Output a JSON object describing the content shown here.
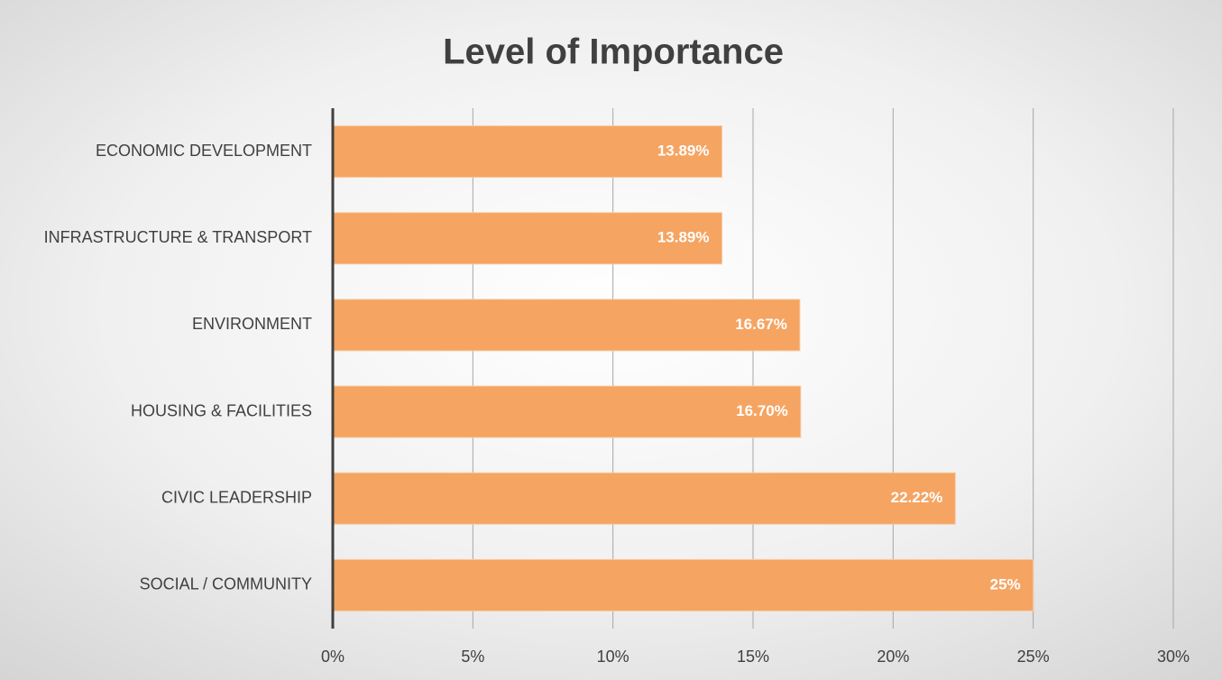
{
  "chart_data": {
    "type": "bar",
    "orientation": "horizontal",
    "title": "Level of Importance",
    "categories": [
      "ECONOMIC DEVELOPMENT",
      "INFRASTRUCTURE & TRANSPORT",
      "ENVIRONMENT",
      "HOUSING & FACILITIES",
      "CIVIC LEADERSHIP",
      "SOCIAL / COMMUNITY"
    ],
    "values": [
      13.89,
      13.89,
      16.67,
      16.7,
      22.22,
      25
    ],
    "value_labels": [
      "13.89%",
      "13.89%",
      "16.67%",
      "16.70%",
      "22.22%",
      "25%"
    ],
    "color": "#f5a462",
    "xlim": [
      0,
      30
    ],
    "xticks": [
      {
        "value": 0,
        "label": "0%"
      },
      {
        "value": 5,
        "label": "5%"
      },
      {
        "value": 10,
        "label": "10%"
      },
      {
        "value": 15,
        "label": "15%"
      },
      {
        "value": 20,
        "label": "20%"
      },
      {
        "value": 25,
        "label": "25%"
      },
      {
        "value": 30,
        "label": "30%"
      }
    ],
    "grid": true
  }
}
